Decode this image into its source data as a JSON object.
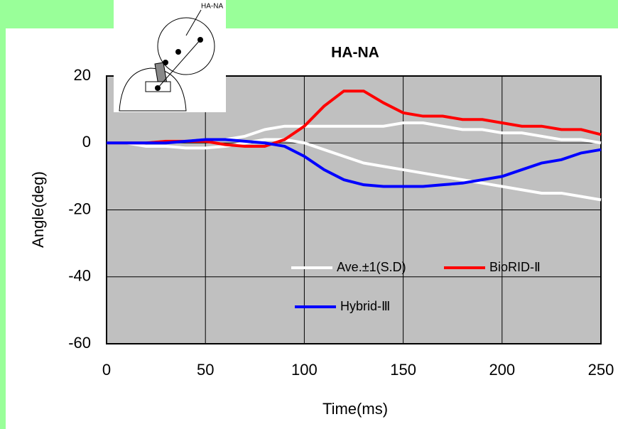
{
  "chart_data": {
    "type": "line",
    "title": "HA-NA",
    "annotation": "HA-NA",
    "x_label": "Time(ms)",
    "y_label": "Angle(deg)",
    "x": [
      0,
      10,
      20,
      30,
      40,
      50,
      60,
      70,
      80,
      90,
      100,
      110,
      120,
      130,
      140,
      150,
      160,
      170,
      180,
      190,
      200,
      210,
      220,
      230,
      240,
      250
    ],
    "series": [
      {
        "name": "Ave.±1(S.D)",
        "color": "#ffffff",
        "values": [
          0,
          0,
          0,
          0.5,
          0.5,
          1,
          1,
          2,
          4,
          5,
          5,
          5,
          5,
          5,
          5,
          6,
          6,
          5,
          4,
          4,
          3,
          3,
          2,
          1,
          1,
          0
        ],
        "lower": [
          0,
          0,
          -1,
          -1,
          -1.5,
          -1.5,
          -1,
          0,
          1,
          1,
          0,
          -2,
          -4,
          -6,
          -7,
          -8,
          -9,
          -10,
          -11,
          -12,
          -13,
          -14,
          -15,
          -15,
          -16,
          -17
        ]
      },
      {
        "name": "BioRID-Ⅱ",
        "color": "#ff0000",
        "values": [
          0,
          0,
          0,
          0.5,
          0.5,
          0.5,
          -0.5,
          -1,
          -1,
          1,
          5,
          11,
          15.5,
          15.5,
          12,
          9,
          8,
          8,
          7,
          7,
          6,
          5,
          5,
          4,
          4,
          2.5
        ]
      },
      {
        "name": "Hybrid-Ⅲ",
        "color": "#0000ff",
        "values": [
          0,
          0,
          0,
          0,
          0.5,
          1,
          1,
          0.5,
          0,
          -1,
          -4,
          -8,
          -11,
          -12.5,
          -13,
          -13,
          -13,
          -12.5,
          -12,
          -11,
          -10,
          -8,
          -6,
          -5,
          -3,
          -2
        ]
      }
    ],
    "xlim": [
      0,
      250
    ],
    "xticks": [
      0,
      50,
      100,
      150,
      200,
      250
    ],
    "ylim": [
      -60,
      20
    ],
    "yticks": [
      -60,
      -40,
      -20,
      0,
      20
    ],
    "grid": true
  }
}
